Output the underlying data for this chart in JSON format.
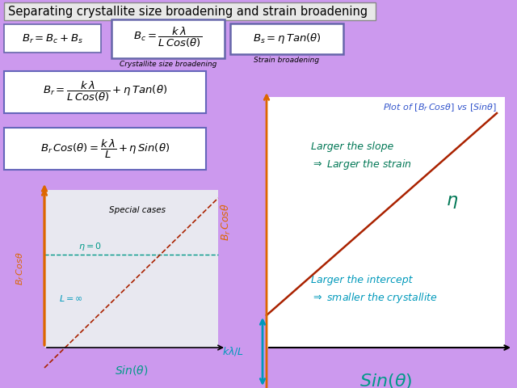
{
  "background_color": "#cc99ee",
  "title": "Separating crystallite size broadening and strain broadening",
  "line_color": "#aa2200",
  "teal_color": "#009988",
  "orange_color": "#dd6600",
  "blue_color": "#3355cc",
  "dark_teal": "#007755",
  "cyan_color": "#0099bb",
  "label_crystallite": "Crystallite size broadening",
  "label_strain": "Strain broadening"
}
